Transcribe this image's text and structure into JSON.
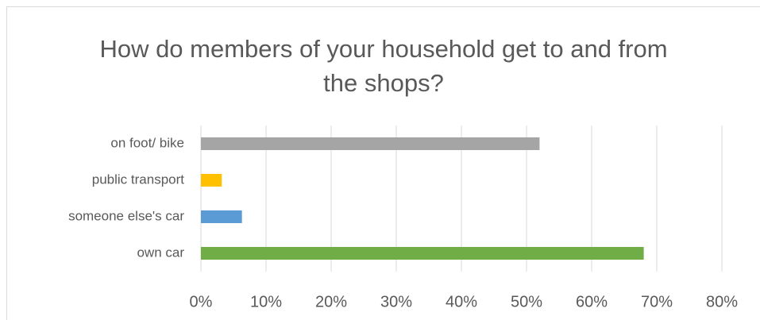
{
  "chart_data": {
    "type": "bar",
    "orientation": "horizontal",
    "title": "How do members of your household get to and from the shops?",
    "categories": [
      "on foot/ bike",
      "public transport",
      "someone else's car",
      "own car"
    ],
    "values": [
      52,
      3.2,
      6.3,
      68
    ],
    "colors": [
      "#a5a5a5",
      "#ffc000",
      "#5b9bd5",
      "#70ad47"
    ],
    "xlim": [
      0,
      80
    ],
    "xticks": [
      {
        "value": 0,
        "label": "0%"
      },
      {
        "value": 10,
        "label": "10%"
      },
      {
        "value": 20,
        "label": "20%"
      },
      {
        "value": 30,
        "label": "30%"
      },
      {
        "value": 40,
        "label": "40%"
      },
      {
        "value": 50,
        "label": "50%"
      },
      {
        "value": 60,
        "label": "60%"
      },
      {
        "value": 70,
        "label": "70%"
      },
      {
        "value": 80,
        "label": "80%"
      }
    ],
    "grid": true
  }
}
